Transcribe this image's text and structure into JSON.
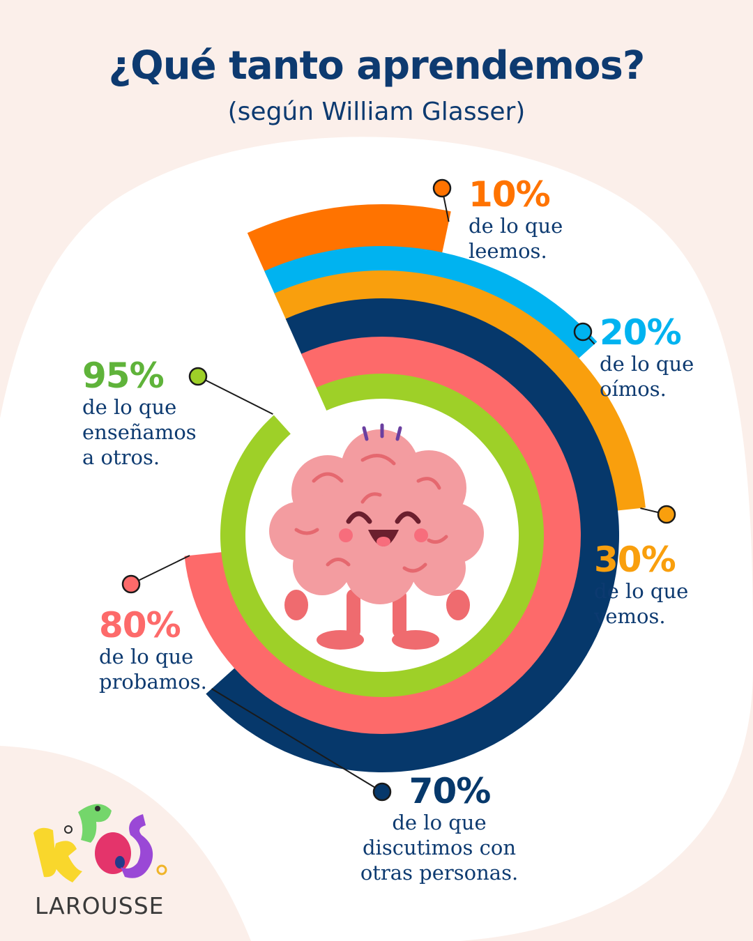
{
  "title": "¿Qué tanto aprendemos?",
  "subtitle": "(según William Glasser)",
  "brand": {
    "logo_text": "KIDS",
    "name": "LAROUSSE"
  },
  "colors": {
    "background": "#fbefea",
    "blob": "#ffffff",
    "title": "#0d3a70"
  },
  "chart_data": {
    "type": "radial-bar",
    "unit": "%",
    "max": 100,
    "series": [
      {
        "label": "de lo que leemos.",
        "value": 10,
        "value_label": "10%",
        "color": "#ff7300"
      },
      {
        "label": "de lo que oímos.",
        "value": 20,
        "value_label": "20%",
        "color": "#00b3f0"
      },
      {
        "label": "de lo que vemos.",
        "value": 30,
        "value_label": "30%",
        "color": "#f99f0d"
      },
      {
        "label": "de lo que discutimos con otras personas.",
        "value": 70,
        "value_label": "70%",
        "color": "#06386b"
      },
      {
        "label": "de lo que probamos.",
        "value": 80,
        "value_label": "80%",
        "color": "#fd6a6a"
      },
      {
        "label": "de lo que enseñamos a otros.",
        "value": 95,
        "value_label": "95%",
        "color": "#9ed028"
      }
    ]
  },
  "labels": {
    "read": {
      "pct": "10%",
      "desc": "de lo que\nleemos."
    },
    "hear": {
      "pct": "20%",
      "desc": "de lo que\noímos."
    },
    "see": {
      "pct": "30%",
      "desc": "de lo que\nvemos."
    },
    "discuss": {
      "pct": "70%",
      "desc": "de lo que\ndiscutimos con\notras personas."
    },
    "try": {
      "pct": "80%",
      "desc": "de lo que\nprobamos."
    },
    "teach": {
      "pct": "95%",
      "desc": "de lo que\nenseñamos\na otros."
    }
  },
  "mascot": "brain-mascot"
}
